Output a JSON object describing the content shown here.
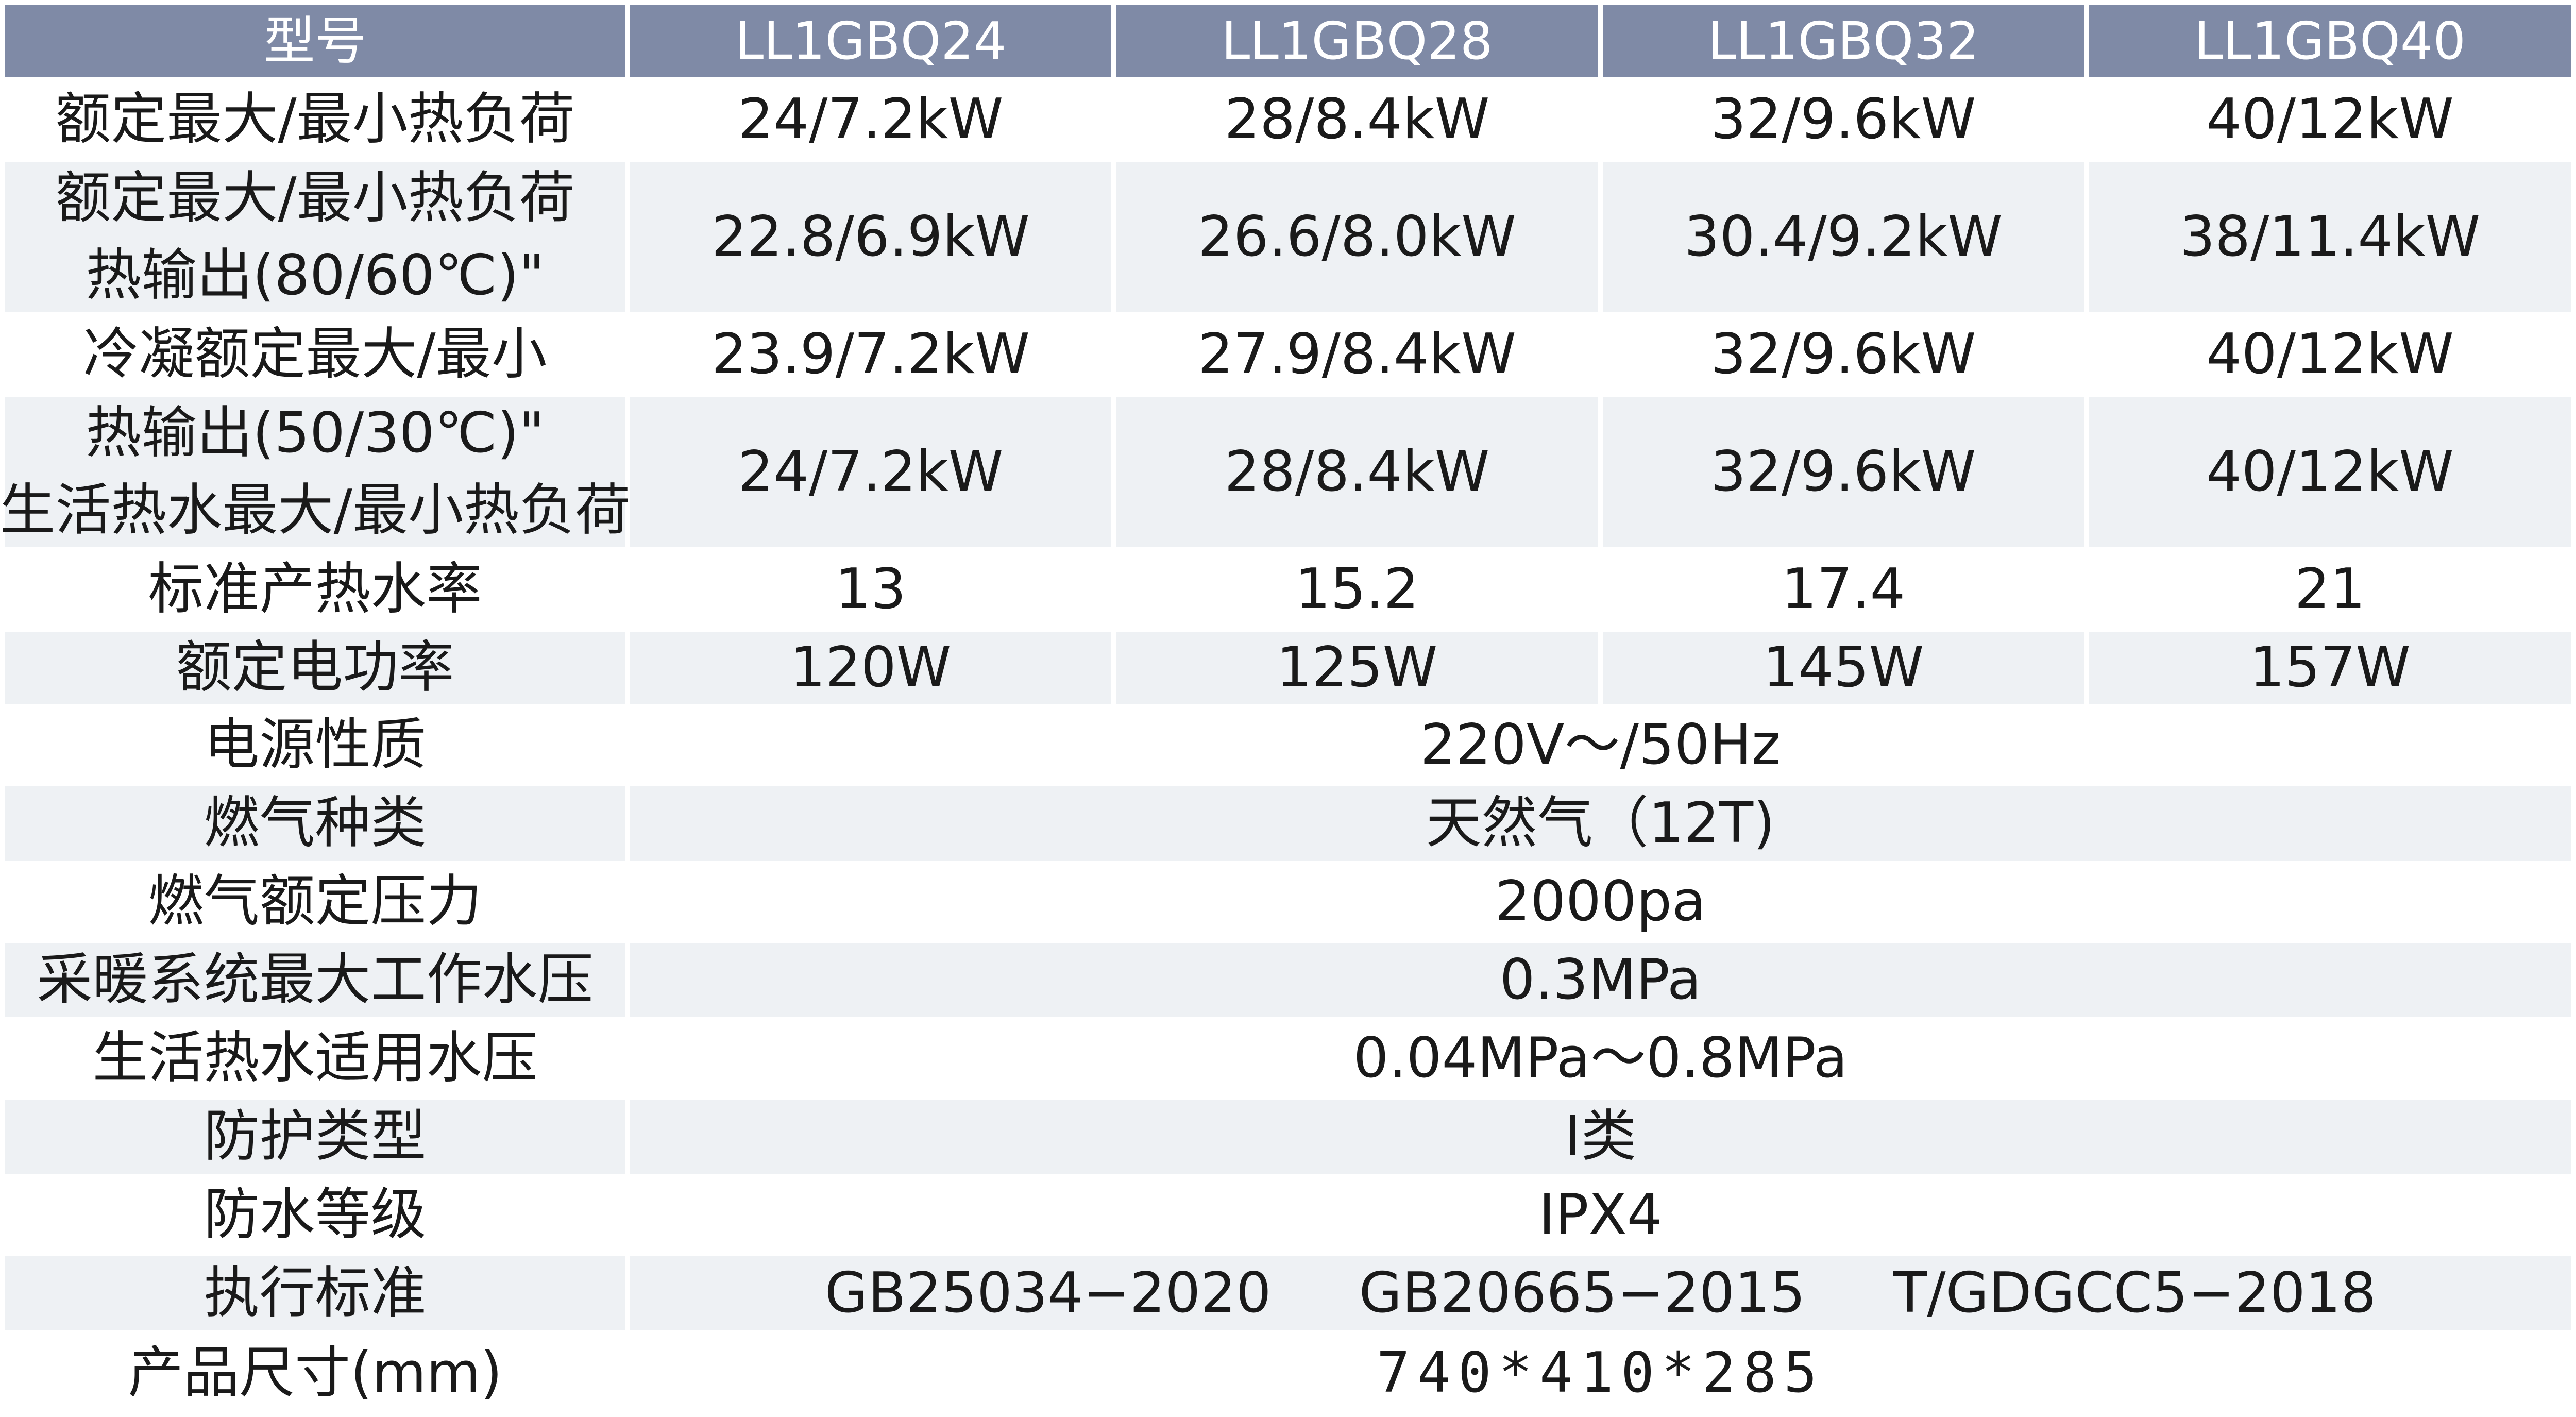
{
  "header": {
    "model_label": "型号",
    "models": [
      "LL1GBQ24",
      "LL1GBQ28",
      "LL1GBQ32",
      "LL1GBQ40"
    ]
  },
  "rows": {
    "rated_heat_load": {
      "label": "额定最大/最小热负荷",
      "values": [
        "24/7.2kW",
        "28/8.4kW",
        "32/9.6kW",
        "40/12kW"
      ]
    },
    "heat_output_80_60": {
      "label_line1": "额定最大/最小热负荷",
      "label_line2": "热输出(80/60℃)\"",
      "values": [
        "22.8/6.9kW",
        "26.6/8.0kW",
        "30.4/9.2kW",
        "38/11.4kW"
      ]
    },
    "condensing_max_min": {
      "label": "冷凝额定最大/最小",
      "values": [
        "23.9/7.2kW",
        "27.9/8.4kW",
        "32/9.6kW",
        "40/12kW"
      ]
    },
    "heat_output_50_30": {
      "label_line1": "热输出(50/30℃)\"",
      "label_line2": "生活热水最大/最小热负荷",
      "values": [
        "24/7.2kW",
        "28/8.4kW",
        "32/9.6kW",
        "40/12kW"
      ]
    },
    "hot_water_rate": {
      "label": "标准产热水率",
      "values": [
        "13",
        "15.2",
        "17.4",
        "21"
      ]
    },
    "rated_power": {
      "label": "额定电功率",
      "values": [
        "120W",
        "125W",
        "145W",
        "157W"
      ]
    },
    "power_supply": {
      "label": "电源性质",
      "value": "220V～/50Hz"
    },
    "gas_type": {
      "label": "燃气种类",
      "value": "天然气（12T)"
    },
    "gas_pressure": {
      "label": "燃气额定压力",
      "value": "2000pa"
    },
    "heating_pressure": {
      "label": "采暖系统最大工作水压",
      "value": "0.3MPa"
    },
    "dhw_pressure": {
      "label": "生活热水适用水压",
      "value": "0.04MPa～0.8MPa"
    },
    "protection_type": {
      "label": "防护类型",
      "value": "I类"
    },
    "waterproof_grade": {
      "label": "防水等级",
      "value": "IPX4"
    },
    "standards": {
      "label": "执行标准",
      "values": [
        "GB25034−2020",
        "GB20665−2015",
        "T/GDGCC5−2018"
      ]
    },
    "dimensions": {
      "label": "产品尺寸(mm)",
      "value": "740*410*285"
    }
  },
  "colors": {
    "header_bg": "#7f8aa6",
    "header_text": "#ffffff",
    "row_alt_bg": "#eef1f4",
    "row_bg": "#ffffff",
    "text": "#1a1a1a"
  }
}
